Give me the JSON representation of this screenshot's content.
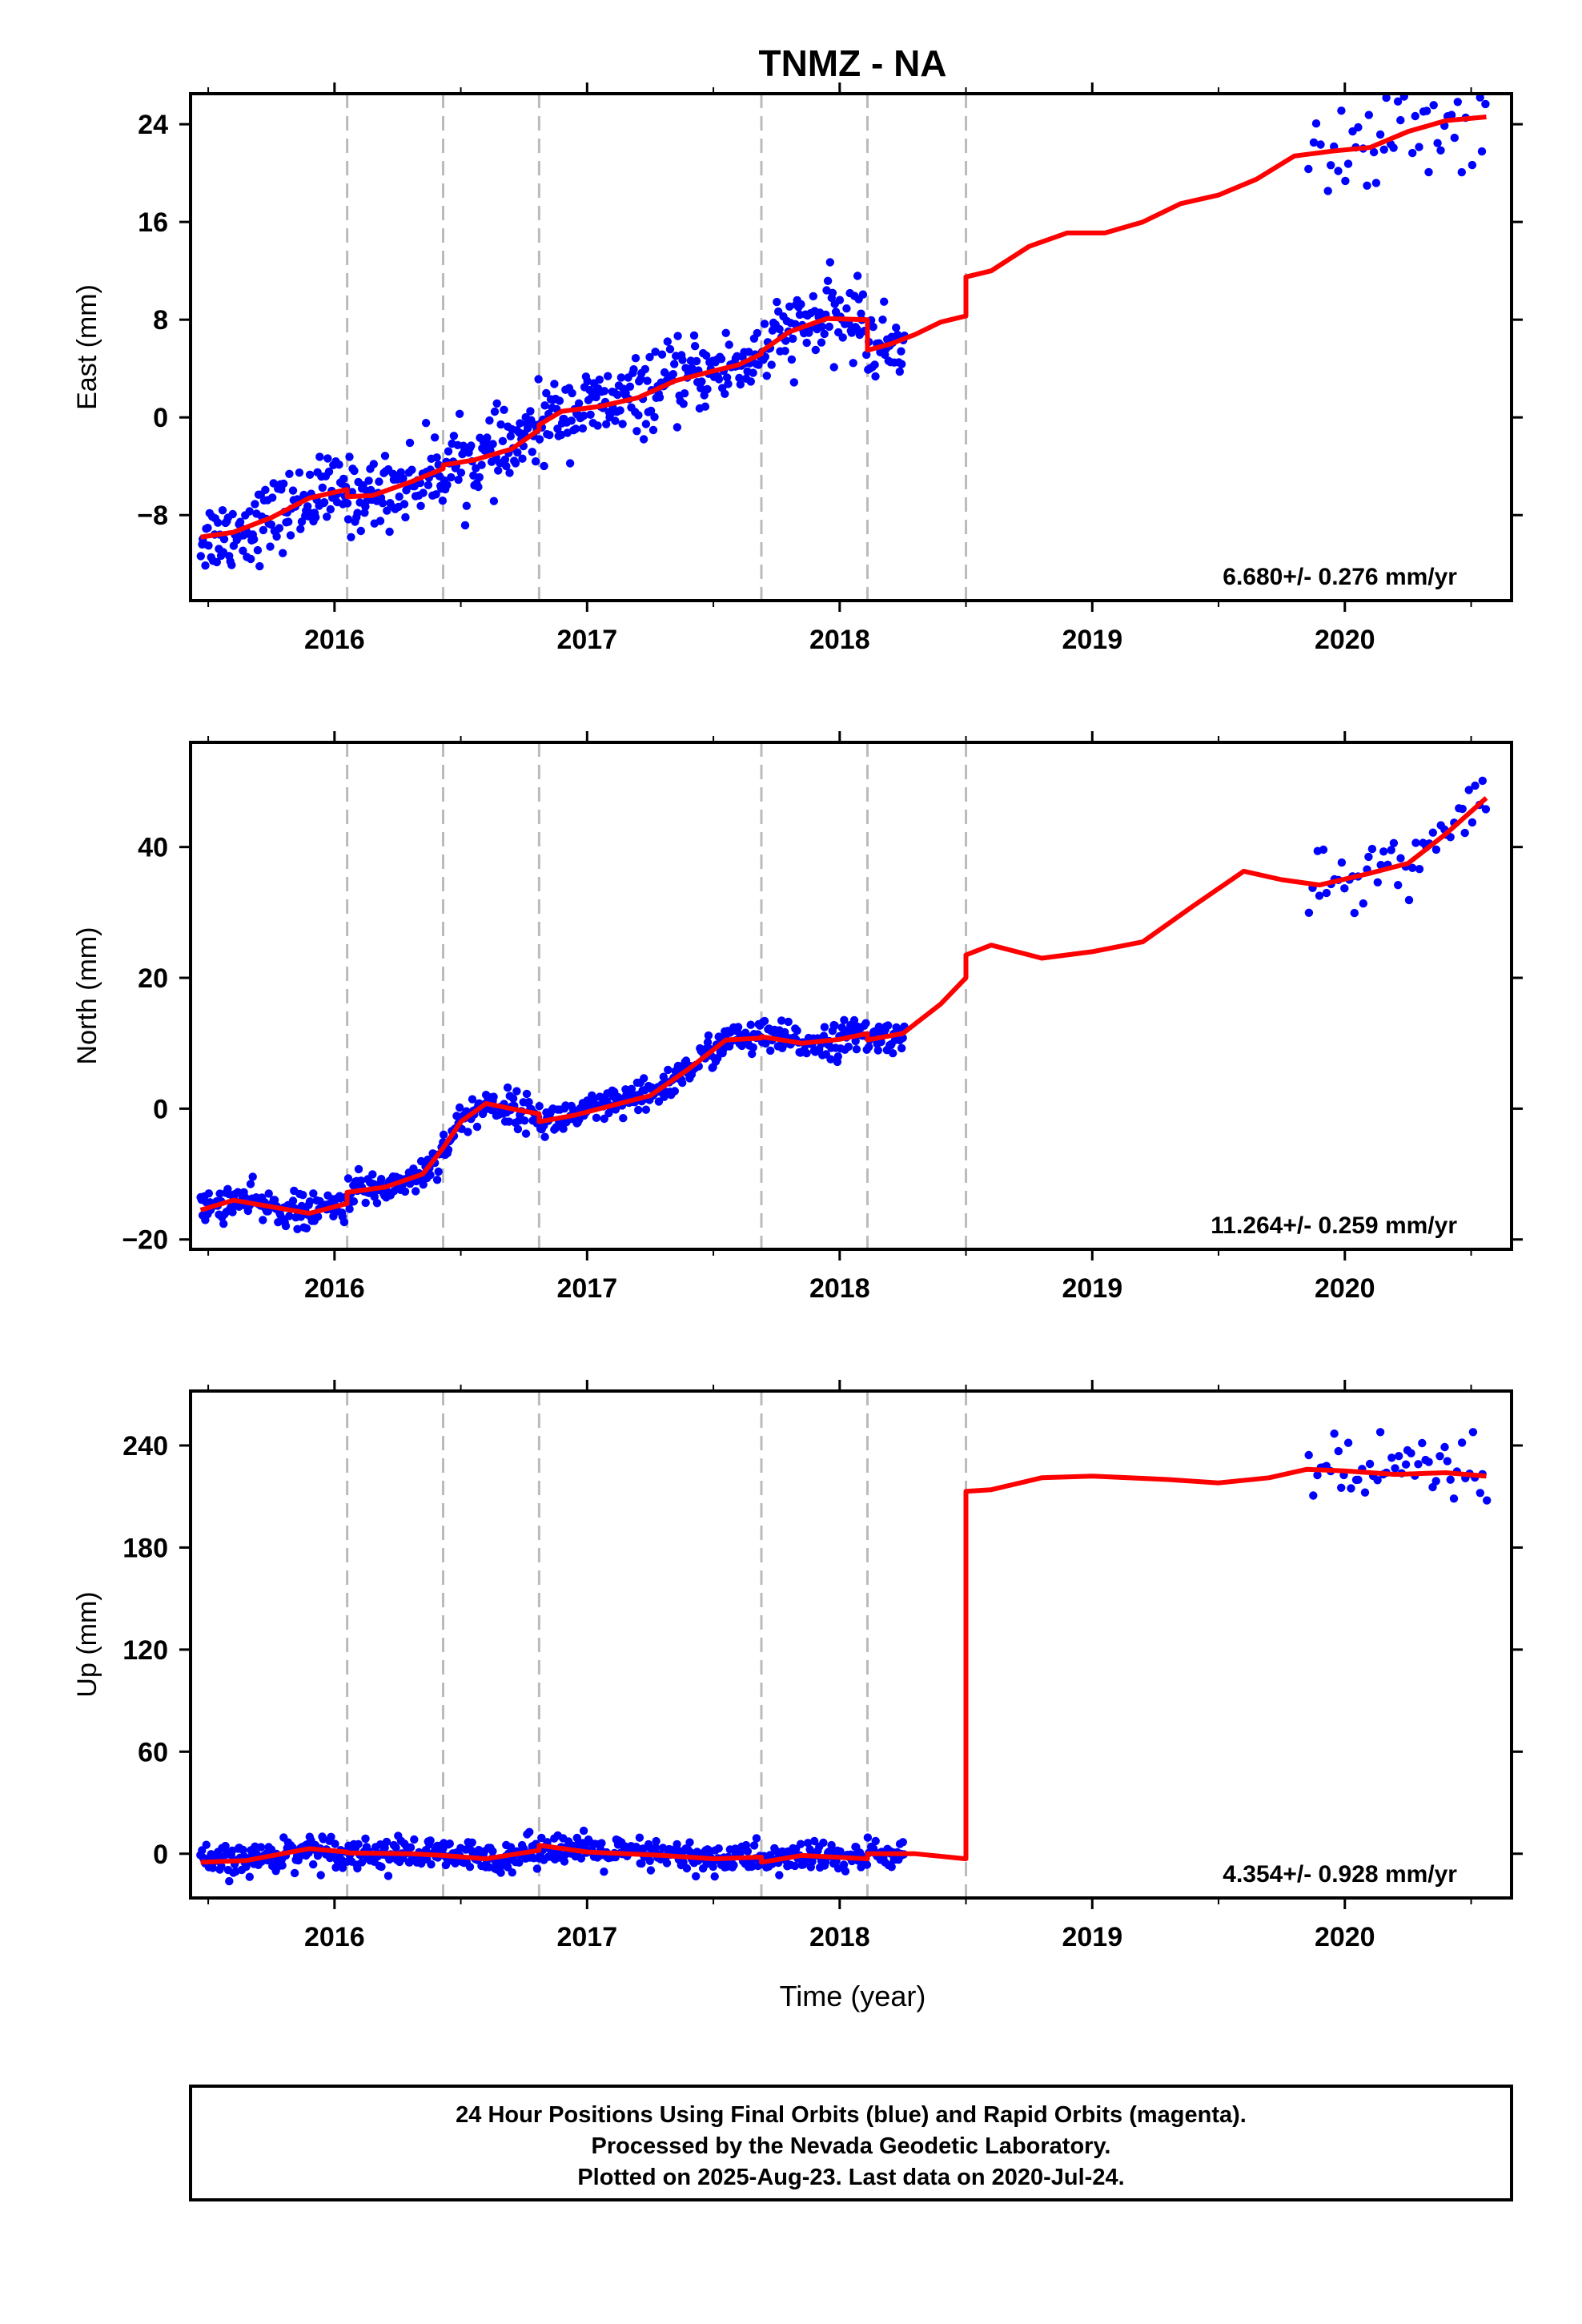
{
  "title": "TNMZ - NA",
  "xlabel": "Time (year)",
  "colors": {
    "final_orbits": "#0000ff",
    "model": "#ff0000",
    "breaks": "#bbbbbb",
    "axes": "#000000"
  },
  "chart_data": [
    {
      "type": "scatter",
      "name": "east",
      "ylabel": "East (mm)",
      "xlim": [
        2015.43,
        2020.66
      ],
      "ylim": [
        -15,
        26.5
      ],
      "yticks": [
        -8,
        0,
        8,
        16,
        24
      ],
      "ytick_labels": [
        "−8",
        "0",
        "8",
        "16",
        "24"
      ],
      "xticks": [
        2016,
        2017,
        2018,
        2019,
        2020
      ],
      "xtick_labels": [
        "2016",
        "2017",
        "2018",
        "2019",
        "2020"
      ],
      "breaks": [
        2016.05,
        2016.43,
        2016.81,
        2017.69,
        2018.11,
        2018.5
      ],
      "rate_label": "6.680+/- 0.276 mm/yr",
      "obs_segments": [
        {
          "start": 2015.47,
          "end": 2018.26,
          "step": 0.0045,
          "scatter": 1.5
        },
        {
          "start": 2019.86,
          "end": 2020.56,
          "step": 0.014,
          "scatter": 2.1
        }
      ],
      "model": [
        [
          2015.47,
          -9.8
        ],
        [
          2015.6,
          -9.4
        ],
        [
          2015.75,
          -8.2
        ],
        [
          2015.9,
          -6.6
        ],
        [
          2016.05,
          -5.9
        ],
        [
          2016.05,
          -6.5
        ],
        [
          2016.15,
          -6.4
        ],
        [
          2016.3,
          -5.3
        ],
        [
          2016.43,
          -4.2
        ],
        [
          2016.43,
          -3.9
        ],
        [
          2016.55,
          -3.5
        ],
        [
          2016.7,
          -2.6
        ],
        [
          2016.81,
          -1.0
        ],
        [
          2016.81,
          -0.6
        ],
        [
          2016.9,
          0.5
        ],
        [
          2017.05,
          0.9
        ],
        [
          2017.2,
          1.6
        ],
        [
          2017.35,
          3.0
        ],
        [
          2017.5,
          3.8
        ],
        [
          2017.6,
          4.3
        ],
        [
          2017.69,
          5.2
        ],
        [
          2017.69,
          5.4
        ],
        [
          2017.8,
          7.0
        ],
        [
          2017.95,
          8.1
        ],
        [
          2018.11,
          8.0
        ],
        [
          2018.11,
          5.5
        ],
        [
          2018.2,
          6.0
        ],
        [
          2018.3,
          6.8
        ],
        [
          2018.4,
          7.8
        ],
        [
          2018.5,
          8.3
        ],
        [
          2018.5,
          11.5
        ],
        [
          2018.6,
          12.0
        ],
        [
          2018.75,
          14.0
        ],
        [
          2018.9,
          15.1
        ],
        [
          2019.05,
          15.1
        ],
        [
          2019.2,
          16.0
        ],
        [
          2019.35,
          17.5
        ],
        [
          2019.5,
          18.2
        ],
        [
          2019.65,
          19.5
        ],
        [
          2019.8,
          21.4
        ],
        [
          2019.95,
          21.8
        ],
        [
          2020.1,
          22.1
        ],
        [
          2020.25,
          23.4
        ],
        [
          2020.4,
          24.3
        ],
        [
          2020.56,
          24.6
        ]
      ]
    },
    {
      "type": "scatter",
      "name": "north",
      "ylabel": "North (mm)",
      "xlim": [
        2015.43,
        2020.66
      ],
      "ylim": [
        -21.5,
        56
      ],
      "yticks": [
        -20,
        0,
        20,
        40
      ],
      "ytick_labels": [
        "−20",
        "0",
        "20",
        "40"
      ],
      "xticks": [
        2016,
        2017,
        2018,
        2019,
        2020
      ],
      "xtick_labels": [
        "2016",
        "2017",
        "2018",
        "2019",
        "2020"
      ],
      "breaks": [
        2016.05,
        2016.43,
        2016.81,
        2017.69,
        2018.11,
        2018.5
      ],
      "rate_label": "11.264+/- 0.259 mm/yr",
      "obs_segments": [
        {
          "start": 2015.47,
          "end": 2018.26,
          "step": 0.0045,
          "scatter": 1.3
        },
        {
          "start": 2019.86,
          "end": 2020.56,
          "step": 0.014,
          "scatter": 2.4
        }
      ],
      "model": [
        [
          2015.47,
          -15.5
        ],
        [
          2015.6,
          -14.0
        ],
        [
          2015.75,
          -15.0
        ],
        [
          2015.9,
          -16.0
        ],
        [
          2016.05,
          -14.5
        ],
        [
          2016.05,
          -12.8
        ],
        [
          2016.2,
          -12.0
        ],
        [
          2016.35,
          -10.0
        ],
        [
          2016.43,
          -6.0
        ],
        [
          2016.5,
          -2.0
        ],
        [
          2016.6,
          0.8
        ],
        [
          2016.7,
          0.0
        ],
        [
          2016.81,
          -0.8
        ],
        [
          2016.81,
          -2.0
        ],
        [
          2016.95,
          -1.0
        ],
        [
          2017.1,
          0.5
        ],
        [
          2017.25,
          2.0
        ],
        [
          2017.4,
          6.0
        ],
        [
          2017.55,
          10.5
        ],
        [
          2017.69,
          10.8
        ],
        [
          2017.69,
          11.0
        ],
        [
          2017.85,
          10.0
        ],
        [
          2018.0,
          10.6
        ],
        [
          2018.11,
          11.5
        ],
        [
          2018.11,
          10.5
        ],
        [
          2018.25,
          11.5
        ],
        [
          2018.4,
          16.0
        ],
        [
          2018.5,
          20.0
        ],
        [
          2018.5,
          23.5
        ],
        [
          2018.6,
          25.0
        ],
        [
          2018.8,
          23.0
        ],
        [
          2019.0,
          24.0
        ],
        [
          2019.2,
          25.5
        ],
        [
          2019.4,
          31.0
        ],
        [
          2019.6,
          36.3
        ],
        [
          2019.75,
          35.0
        ],
        [
          2019.9,
          34.2
        ],
        [
          2020.1,
          36.0
        ],
        [
          2020.25,
          37.5
        ],
        [
          2020.4,
          42.0
        ],
        [
          2020.56,
          47.5
        ]
      ]
    },
    {
      "type": "scatter",
      "name": "up",
      "ylabel": "Up (mm)",
      "xlim": [
        2015.43,
        2020.66
      ],
      "ylim": [
        -26,
        272
      ],
      "yticks": [
        0,
        60,
        120,
        180,
        240
      ],
      "ytick_labels": [
        "0",
        "60",
        "120",
        "180",
        "240"
      ],
      "xticks": [
        2016,
        2017,
        2018,
        2019,
        2020
      ],
      "xtick_labels": [
        "2016",
        "2017",
        "2018",
        "2019",
        "2020"
      ],
      "breaks": [
        2016.05,
        2016.43,
        2016.81,
        2017.69,
        2018.11,
        2018.5
      ],
      "rate_label": "4.354+/- 0.928 mm/yr",
      "obs_segments": [
        {
          "start": 2015.47,
          "end": 2018.26,
          "step": 0.0045,
          "scatter": 4.5
        },
        {
          "start": 2019.86,
          "end": 2020.56,
          "step": 0.014,
          "scatter": 10.0
        }
      ],
      "model": [
        [
          2015.47,
          -5.0
        ],
        [
          2015.65,
          -4.0
        ],
        [
          2015.9,
          3.0
        ],
        [
          2016.05,
          1.0
        ],
        [
          2016.05,
          0.5
        ],
        [
          2016.3,
          0.0
        ],
        [
          2016.43,
          -1.0
        ],
        [
          2016.43,
          -1.0
        ],
        [
          2016.6,
          -3.0
        ],
        [
          2016.81,
          2.0
        ],
        [
          2016.81,
          5.0
        ],
        [
          2017.0,
          1.0
        ],
        [
          2017.3,
          -1.0
        ],
        [
          2017.5,
          -3.0
        ],
        [
          2017.69,
          -2.0
        ],
        [
          2017.69,
          -5.0
        ],
        [
          2017.85,
          -1.0
        ],
        [
          2018.11,
          -3.0
        ],
        [
          2018.11,
          0.0
        ],
        [
          2018.3,
          0.0
        ],
        [
          2018.5,
          -3.0
        ],
        [
          2018.5,
          213.0
        ],
        [
          2018.6,
          214.0
        ],
        [
          2018.8,
          221.0
        ],
        [
          2019.0,
          222.0
        ],
        [
          2019.3,
          220.0
        ],
        [
          2019.5,
          218.0
        ],
        [
          2019.7,
          221.0
        ],
        [
          2019.85,
          226.0
        ],
        [
          2020.0,
          225.0
        ],
        [
          2020.2,
          223.0
        ],
        [
          2020.4,
          224.0
        ],
        [
          2020.56,
          222.0
        ]
      ]
    }
  ],
  "footer": {
    "line1": "24 Hour Positions Using Final Orbits (blue) and Rapid Orbits (magenta).",
    "line2": "Processed by the Nevada Geodetic Laboratory.",
    "line3": "Plotted on 2025-Aug-23. Last data on 2020-Jul-24."
  }
}
